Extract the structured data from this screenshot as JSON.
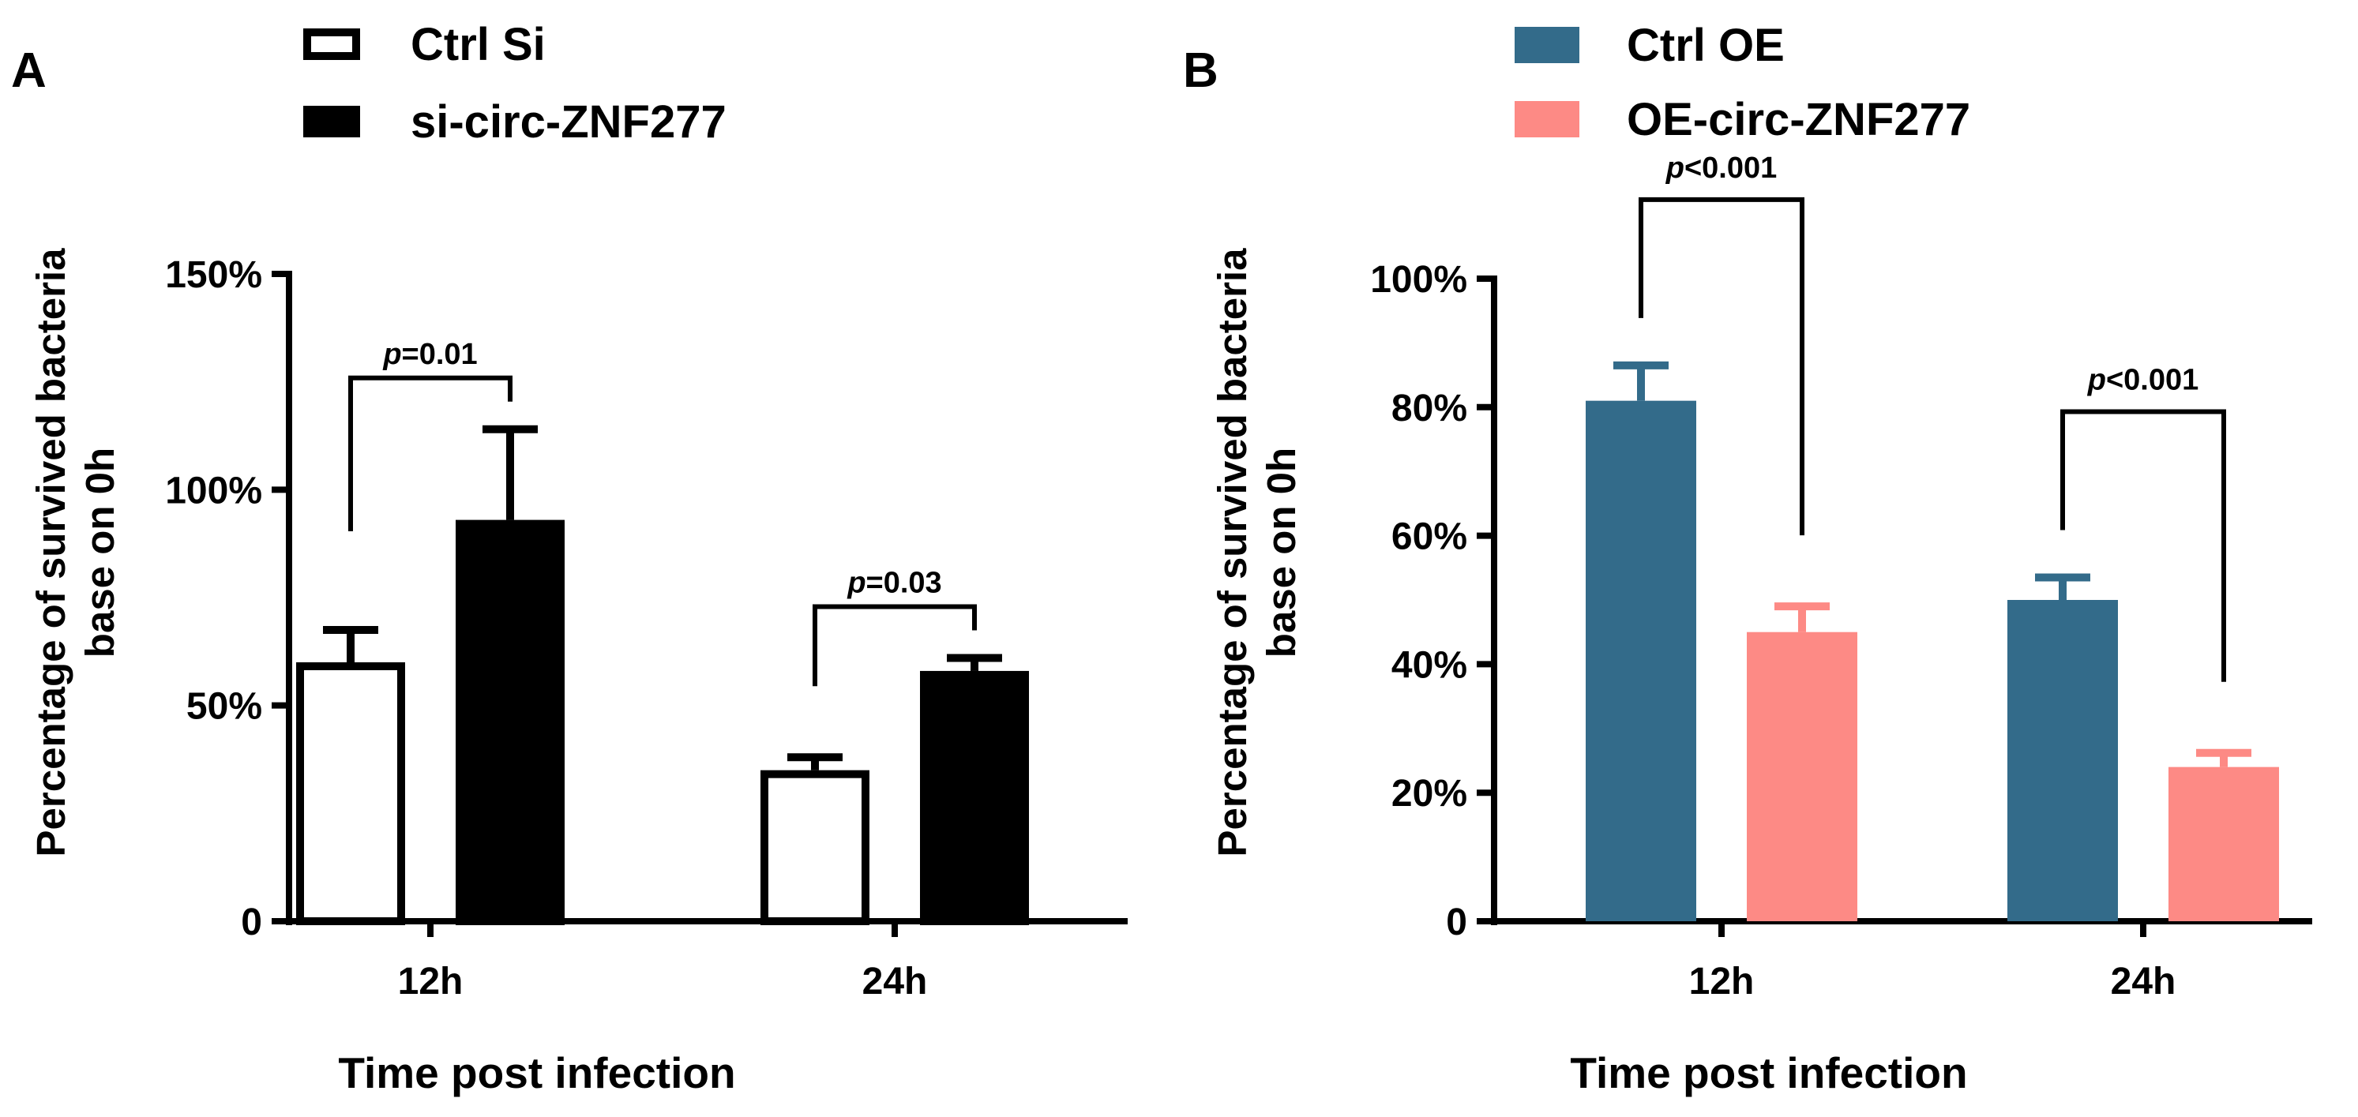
{
  "chart_data": [
    {
      "panel": "A",
      "type": "bar",
      "categories": [
        "12h",
        "24h"
      ],
      "series": [
        {
          "name": "Ctrl Si",
          "color": "#ffffff",
          "stroke": "#000000",
          "values": [
            0.6,
            0.35
          ],
          "errors": [
            0.075,
            0.03
          ]
        },
        {
          "name": "si-circ-ZNF277",
          "color": "#000000",
          "stroke": "#000000",
          "values": [
            0.93,
            0.58
          ],
          "errors": [
            0.21,
            0.03
          ]
        }
      ],
      "xlabel": "Time post infection",
      "ylabel_lines": [
        "Percentage of survived bacteria",
        "base on 0h"
      ],
      "ylim": [
        0,
        1.5
      ],
      "yticks": [
        0,
        0.5,
        1.0,
        1.5
      ],
      "ytick_labels": [
        "0",
        "50%",
        "100%",
        "150%"
      ],
      "annotations": [
        {
          "category": "12h",
          "p_symbol": "p",
          "p_text": "=0.01"
        },
        {
          "category": "24h",
          "p_symbol": "p",
          "p_text": "=0.03"
        }
      ]
    },
    {
      "panel": "B",
      "type": "bar",
      "categories": [
        "12h",
        "24h"
      ],
      "series": [
        {
          "name": "Ctrl OE",
          "color": "#336b8a",
          "stroke": "#336b8a",
          "values": [
            0.81,
            0.5
          ],
          "errors": [
            0.055,
            0.035
          ]
        },
        {
          "name": "OE-circ-ZNF277",
          "color": "#fd8a85",
          "stroke": "#fd8a85",
          "values": [
            0.45,
            0.24
          ],
          "errors": [
            0.04,
            0.022
          ]
        }
      ],
      "xlabel": "Time post infection",
      "ylabel_lines": [
        "Percentage of survived bacteria",
        "base on 0h"
      ],
      "ylim": [
        0,
        1.0
      ],
      "yticks": [
        0,
        0.2,
        0.4,
        0.6,
        0.8,
        1.0
      ],
      "ytick_labels": [
        "0",
        "20%",
        "40%",
        "60%",
        "80%",
        "100%"
      ],
      "annotations": [
        {
          "category": "12h",
          "p_symbol": "p",
          "p_text": "<0.001"
        },
        {
          "category": "24h",
          "p_symbol": "p",
          "p_text": "<0.001"
        }
      ]
    }
  ]
}
